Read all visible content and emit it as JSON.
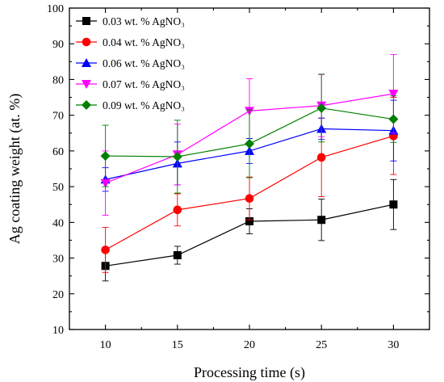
{
  "chart_data": {
    "type": "line",
    "title": "",
    "xlabel": "Processing time (s)",
    "ylabel": "Ag coating weight (at. %)",
    "xlim": [
      7.5,
      32.5
    ],
    "ylim": [
      10,
      100
    ],
    "x_ticks": [
      10,
      15,
      20,
      25,
      30
    ],
    "y_ticks": [
      10,
      20,
      30,
      40,
      50,
      60,
      70,
      80,
      90,
      100
    ],
    "grid": false,
    "legend_position": "top-left",
    "x": [
      10,
      15,
      20,
      25,
      30
    ],
    "series": [
      {
        "name": "0.03 wt. % AgNO₃",
        "color": "#000000",
        "marker": "square",
        "values": [
          27.8,
          30.8,
          40.3,
          40.7,
          45.0
        ],
        "errors": [
          4.2,
          2.5,
          3.5,
          5.8,
          7.0
        ]
      },
      {
        "name": "0.04 wt. % AgNO₃",
        "color": "#ff0000",
        "marker": "circle",
        "values": [
          32.3,
          43.5,
          46.7,
          58.2,
          64.2
        ],
        "errors": [
          6.3,
          4.5,
          6.0,
          11.0,
          10.8
        ]
      },
      {
        "name": "0.06 wt. % AgNO₃",
        "color": "#0000ff",
        "marker": "triangle-up",
        "values": [
          52.0,
          56.5,
          60.0,
          66.2,
          65.7
        ],
        "errors": [
          3.3,
          6.0,
          3.5,
          3.0,
          8.5
        ]
      },
      {
        "name": "0.07 wt. % AgNO₃",
        "color": "#ff00ff",
        "marker": "triangle-down",
        "values": [
          51.0,
          59.0,
          71.2,
          72.7,
          76.0
        ],
        "errors": [
          9.0,
          8.5,
          9.0,
          8.7,
          11.0
        ]
      },
      {
        "name": "0.09 wt. % AgNO₃",
        "color": "#008000",
        "marker": "diamond",
        "values": [
          58.6,
          58.4,
          62.0,
          72.0,
          68.9
        ],
        "errors": [
          8.6,
          10.2,
          9.5,
          9.5,
          6.5
        ]
      }
    ]
  }
}
